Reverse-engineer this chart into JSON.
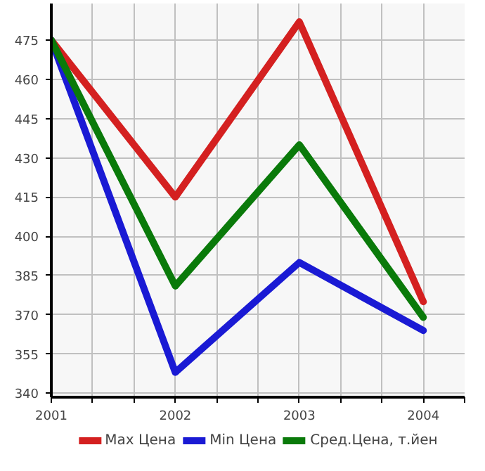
{
  "chart_data": {
    "type": "line",
    "x": [
      2001,
      2002,
      2003,
      2004
    ],
    "series": [
      {
        "name": "Max Цена",
        "color": "#d42020",
        "values": [
          475,
          415,
          482,
          375
        ]
      },
      {
        "name": "Min Цена",
        "color": "#1a1ad4",
        "values": [
          475,
          348,
          390,
          364
        ]
      },
      {
        "name": "Сред.Цена, т.йен",
        "color": "#0a7a0a",
        "values": [
          475,
          381,
          435,
          369
        ]
      }
    ],
    "xlim": [
      2001,
      2004.333
    ],
    "xticks": [
      2001,
      {
        "value": 2001.333,
        "label": null
      },
      {
        "value": 2001.667,
        "label": null
      },
      2002,
      {
        "value": 2002.333,
        "label": null
      },
      {
        "value": 2002.667,
        "label": null
      },
      2003,
      {
        "value": 2003.333,
        "label": null
      },
      {
        "value": 2003.667,
        "label": null
      },
      2004,
      {
        "value": 2004.333,
        "label": null
      }
    ],
    "ylim": [
      338.5,
      489
    ],
    "yticks": [
      340,
      355,
      370,
      385,
      400,
      415,
      430,
      445,
      460,
      475
    ],
    "grid": true,
    "legend": "bottom",
    "marker": "none",
    "line_style": "solid"
  }
}
